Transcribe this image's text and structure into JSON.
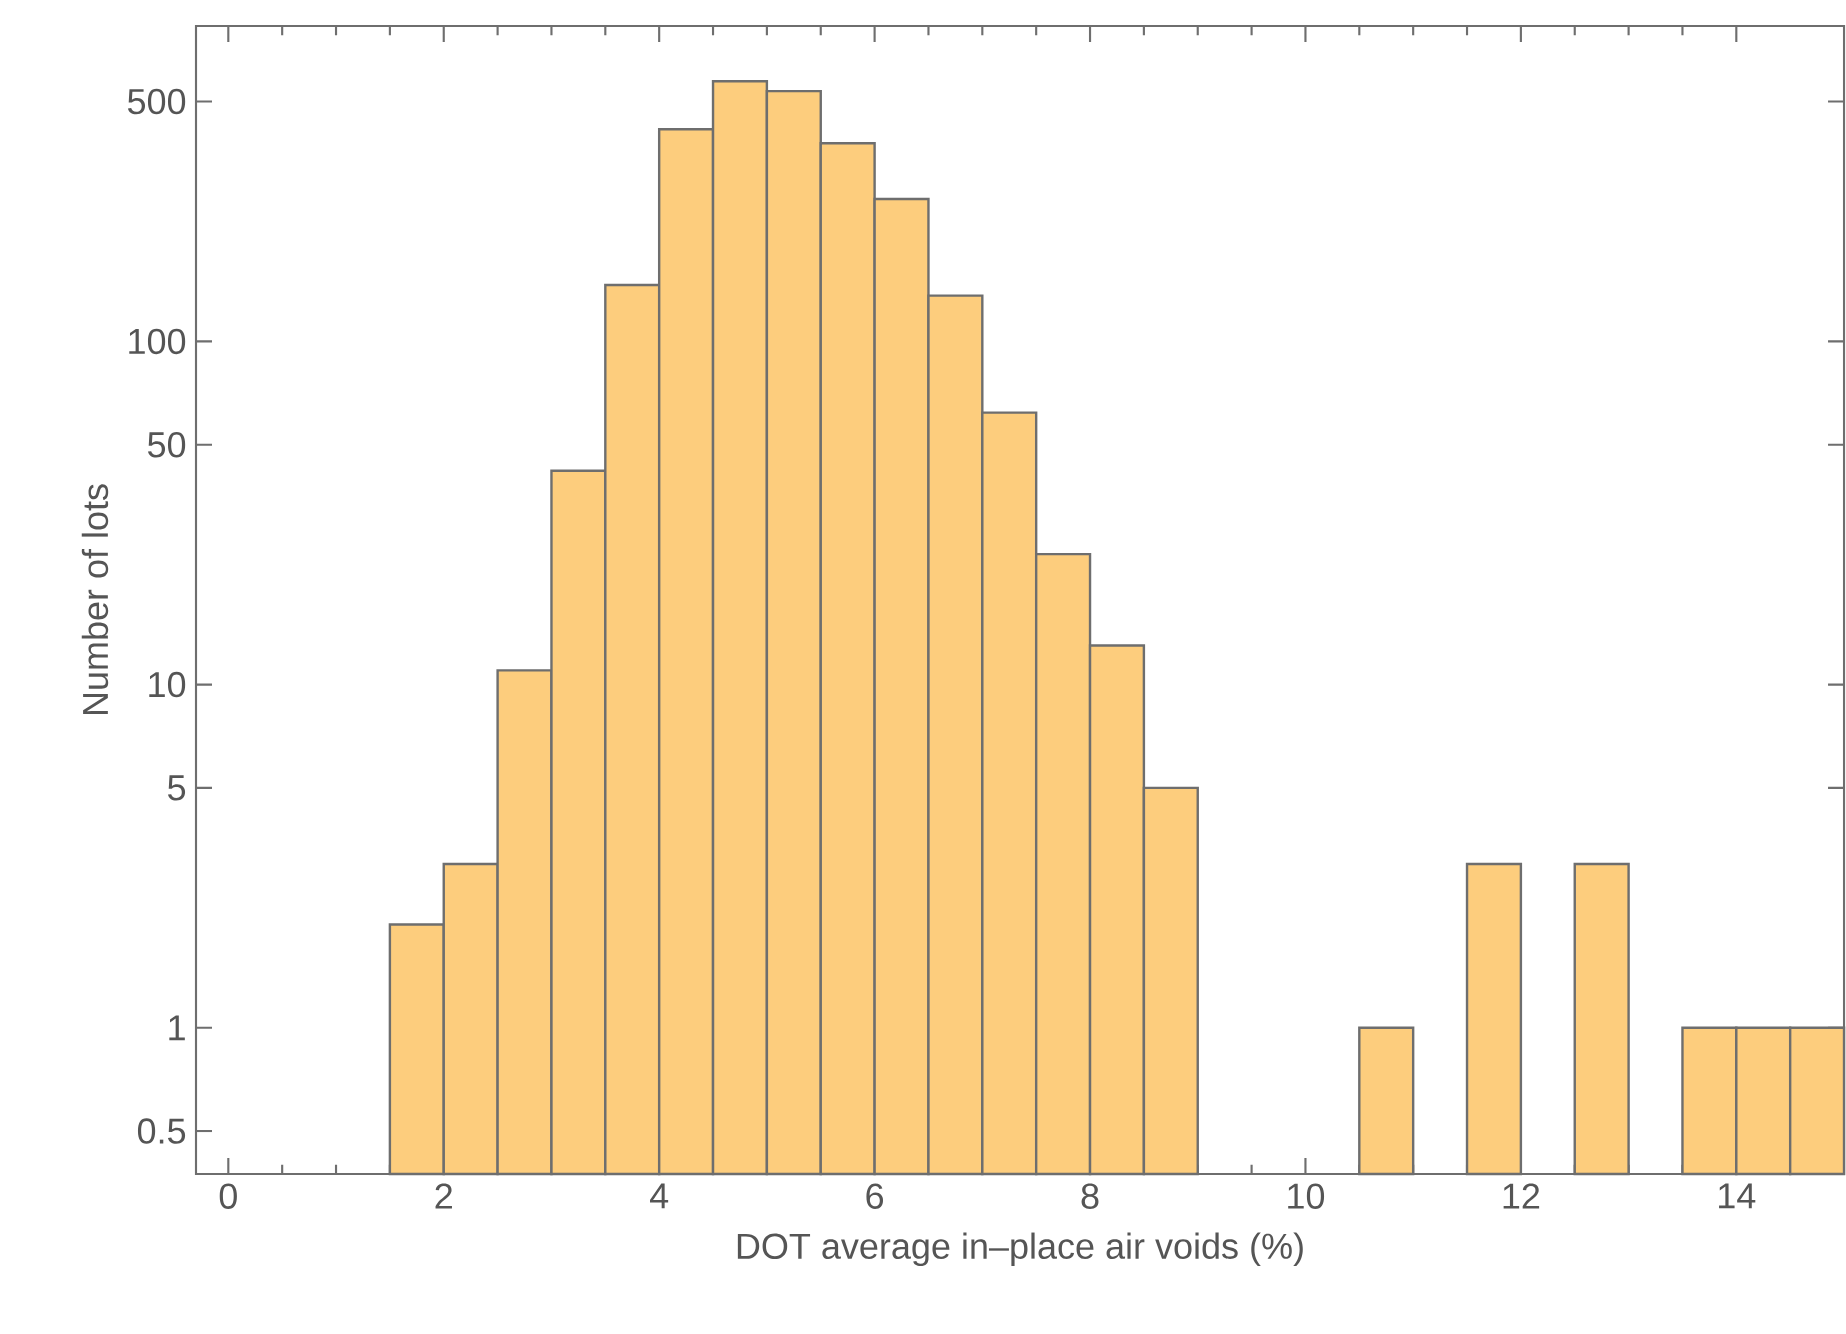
{
  "chart_data": {
    "type": "histogram",
    "xlabel": "DOT average in–place air voids (%)",
    "ylabel": "Number of lots",
    "bins": [
      1.5,
      2,
      2.5,
      3,
      3.5,
      4,
      4.5,
      5,
      5.5,
      6,
      6.5,
      7,
      7.5,
      8,
      8.5,
      9,
      9.5,
      10,
      10.5,
      11,
      11.5,
      12,
      12.5,
      13,
      13.5,
      14,
      14.5,
      15
    ],
    "values": [
      2,
      3,
      11,
      42,
      146,
      415,
      573,
      536,
      378,
      260,
      136,
      62,
      24,
      13,
      5,
      null,
      null,
      null,
      1,
      null,
      3,
      null,
      3,
      null,
      1,
      1,
      1
    ],
    "color": "#fdcd7d",
    "log": "y",
    "xlim": [
      -0.3,
      15
    ],
    "ylim": [
      0.375,
      830
    ],
    "xticks": [
      0,
      2,
      4,
      6,
      8,
      10,
      12,
      14
    ],
    "yticks": [
      0.5,
      1,
      5,
      10,
      50,
      100,
      500
    ]
  }
}
